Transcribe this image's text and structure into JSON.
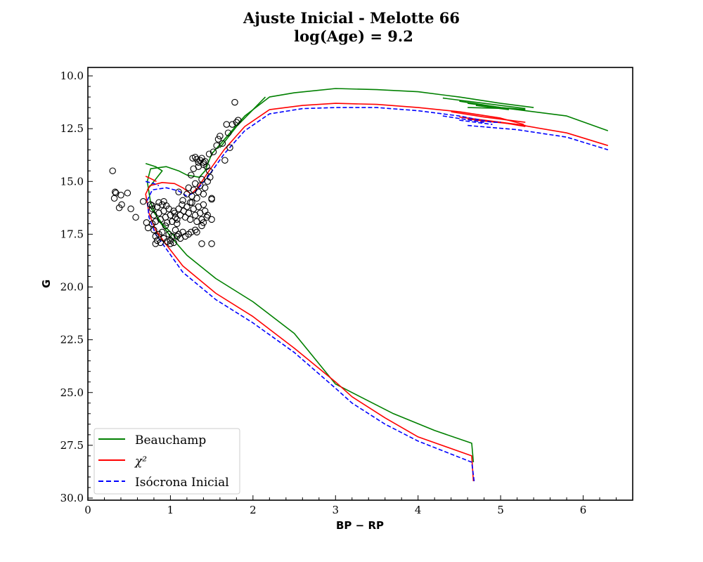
{
  "chart_data": {
    "type": "scatter",
    "title_line1": "Ajuste Inicial - Melotte 66",
    "title_line2": "log(Age) = 9.2",
    "xlabel": "BP − RP",
    "ylabel": "G",
    "xlim": [
      0,
      6.6
    ],
    "ylim": [
      30.1,
      9.6
    ],
    "y_inverted": true,
    "grid": false,
    "legend_position": "lower-left",
    "x_ticks": [
      "0",
      "1",
      "2",
      "3",
      "4",
      "5",
      "6"
    ],
    "y_ticks": [
      "10.0",
      "12.5",
      "15.0",
      "17.5",
      "20.0",
      "22.5",
      "25.0",
      "27.5",
      "30.0"
    ],
    "legend": [
      {
        "label": "Beauchamp",
        "color": "#008000",
        "style": "solid"
      },
      {
        "label": "χ²",
        "color": "#ff0000",
        "style": "solid"
      },
      {
        "label": "Isócrona Inicial",
        "color": "#0000ff",
        "style": "dashed"
      }
    ],
    "series": [
      {
        "name": "Beauchamp",
        "color": "#008000",
        "style": "solid",
        "segments": [
          [
            [
              4.67,
              28.3
            ],
            [
              4.65,
              27.4
            ],
            [
              4.2,
              26.8
            ],
            [
              3.7,
              26.0
            ],
            [
              3.2,
              25.0
            ],
            [
              3.0,
              24.6
            ],
            [
              2.5,
              22.2
            ],
            [
              2.0,
              20.7
            ],
            [
              1.55,
              19.6
            ],
            [
              1.2,
              18.5
            ],
            [
              1.0,
              17.6
            ],
            [
              0.85,
              16.8
            ],
            [
              0.76,
              16.0
            ],
            [
              0.72,
              15.0
            ],
            [
              0.76,
              14.4
            ],
            [
              0.95,
              14.3
            ],
            [
              1.1,
              14.5
            ],
            [
              1.2,
              14.7
            ],
            [
              1.35,
              14.8
            ],
            [
              1.42,
              14.5
            ],
            [
              1.5,
              13.7
            ],
            [
              1.7,
              12.8
            ],
            [
              1.9,
              11.9
            ],
            [
              2.2,
              11.0
            ],
            [
              2.5,
              10.8
            ],
            [
              3.0,
              10.6
            ],
            [
              3.5,
              10.65
            ],
            [
              4.0,
              10.75
            ],
            [
              4.5,
              11.0
            ],
            [
              5.0,
              11.3
            ],
            [
              5.4,
              11.5
            ]
          ],
          [
            [
              0.7,
              14.15
            ],
            [
              0.82,
              14.3
            ],
            [
              0.9,
              14.5
            ],
            [
              0.8,
              15.0
            ],
            [
              0.72,
              15.4
            ]
          ],
          [
            [
              1.6,
              13.4
            ],
            [
              1.8,
              12.4
            ],
            [
              1.95,
              11.8
            ],
            [
              2.15,
              11.0
            ]
          ],
          [
            [
              4.3,
              11.05
            ],
            [
              4.8,
              11.3
            ],
            [
              5.3,
              11.55
            ]
          ],
          [
            [
              4.5,
              11.2
            ],
            [
              5.0,
              11.5
            ],
            [
              5.3,
              11.6
            ]
          ],
          [
            [
              4.6,
              11.3
            ],
            [
              5.0,
              11.5
            ]
          ],
          [
            [
              4.7,
              11.4
            ],
            [
              5.1,
              11.6
            ]
          ],
          [
            [
              4.6,
              11.5
            ],
            [
              5.1,
              11.55
            ],
            [
              5.8,
              11.9
            ],
            [
              6.3,
              12.6
            ]
          ],
          [
            [
              0.75,
              16.2
            ],
            [
              0.9,
              17.0
            ],
            [
              1.1,
              17.8
            ]
          ]
        ]
      },
      {
        "name": "χ²",
        "color": "#ff0000",
        "style": "solid",
        "segments": [
          [
            [
              4.67,
              29.2
            ],
            [
              4.65,
              28.0
            ],
            [
              4.0,
              27.1
            ],
            [
              3.6,
              26.2
            ],
            [
              3.2,
              25.2
            ],
            [
              3.0,
              24.5
            ],
            [
              2.5,
              22.9
            ],
            [
              2.0,
              21.4
            ],
            [
              1.55,
              20.3
            ],
            [
              1.15,
              19.0
            ],
            [
              0.95,
              18.0
            ],
            [
              0.82,
              17.3
            ],
            [
              0.74,
              16.5
            ],
            [
              0.7,
              15.6
            ],
            [
              0.75,
              15.2
            ],
            [
              0.9,
              15.05
            ],
            [
              1.05,
              15.1
            ],
            [
              1.15,
              15.3
            ],
            [
              1.25,
              15.6
            ],
            [
              1.33,
              15.3
            ],
            [
              1.45,
              14.6
            ],
            [
              1.65,
              13.5
            ],
            [
              1.9,
              12.4
            ],
            [
              2.2,
              11.6
            ],
            [
              2.6,
              11.4
            ],
            [
              3.0,
              11.3
            ],
            [
              3.5,
              11.35
            ],
            [
              4.0,
              11.5
            ],
            [
              4.5,
              11.7
            ],
            [
              5.0,
              12.0
            ],
            [
              5.28,
              12.3
            ]
          ],
          [
            [
              0.7,
              14.75
            ],
            [
              0.78,
              14.9
            ],
            [
              0.83,
              15.0
            ]
          ],
          [
            [
              4.4,
              11.7
            ],
            [
              4.8,
              11.95
            ],
            [
              5.3,
              12.2
            ]
          ],
          [
            [
              4.5,
              11.95
            ],
            [
              4.9,
              12.15
            ],
            [
              5.3,
              12.35
            ]
          ],
          [
            [
              4.6,
              12.05
            ],
            [
              5.0,
              12.2
            ],
            [
              5.3,
              12.4
            ]
          ],
          [
            [
              4.7,
              12.1
            ],
            [
              5.2,
              12.3
            ],
            [
              5.8,
              12.7
            ],
            [
              6.3,
              13.3
            ]
          ]
        ]
      },
      {
        "name": "Isócrona Inicial",
        "color": "#0000ff",
        "style": "dashed",
        "segments": [
          [
            [
              4.68,
              29.2
            ],
            [
              4.65,
              28.3
            ],
            [
              4.0,
              27.3
            ],
            [
              3.6,
              26.5
            ],
            [
              3.2,
              25.5
            ],
            [
              3.0,
              24.8
            ],
            [
              2.5,
              23.1
            ],
            [
              2.0,
              21.7
            ],
            [
              1.55,
              20.6
            ],
            [
              1.15,
              19.3
            ],
            [
              0.95,
              18.2
            ],
            [
              0.82,
              17.5
            ],
            [
              0.74,
              16.7
            ],
            [
              0.72,
              15.9
            ],
            [
              0.78,
              15.4
            ],
            [
              0.95,
              15.3
            ],
            [
              1.1,
              15.45
            ],
            [
              1.2,
              15.7
            ],
            [
              1.3,
              15.5
            ],
            [
              1.45,
              14.8
            ],
            [
              1.65,
              13.7
            ],
            [
              1.9,
              12.6
            ],
            [
              2.2,
              11.8
            ],
            [
              2.6,
              11.55
            ],
            [
              3.0,
              11.5
            ],
            [
              3.5,
              11.5
            ],
            [
              4.0,
              11.65
            ],
            [
              4.5,
              11.9
            ],
            [
              4.9,
              12.2
            ],
            [
              5.0,
              12.2
            ]
          ],
          [
            [
              0.7,
              15.0
            ],
            [
              0.8,
              15.1
            ],
            [
              0.86,
              15.2
            ]
          ],
          [
            [
              4.3,
              11.9
            ],
            [
              4.8,
              12.2
            ]
          ],
          [
            [
              4.5,
              12.1
            ],
            [
              4.9,
              12.3
            ]
          ],
          [
            [
              4.6,
              12.35
            ],
            [
              5.2,
              12.55
            ],
            [
              5.8,
              12.9
            ],
            [
              6.3,
              13.5
            ]
          ]
        ]
      }
    ],
    "points": [
      [
        0.3,
        14.5
      ],
      [
        0.33,
        15.5
      ],
      [
        0.34,
        15.55
      ],
      [
        0.32,
        15.8
      ],
      [
        0.38,
        16.25
      ],
      [
        0.41,
        16.1
      ],
      [
        0.4,
        15.65
      ],
      [
        0.48,
        15.55
      ],
      [
        0.52,
        16.3
      ],
      [
        0.58,
        16.7
      ],
      [
        0.67,
        15.95
      ],
      [
        0.71,
        16.95
      ],
      [
        0.73,
        17.2
      ],
      [
        0.76,
        16.1
      ],
      [
        0.78,
        17.0
      ],
      [
        0.8,
        17.3
      ],
      [
        0.82,
        17.6
      ],
      [
        0.84,
        17.8
      ],
      [
        0.86,
        17.5
      ],
      [
        0.88,
        17.9
      ],
      [
        0.9,
        17.4
      ],
      [
        0.92,
        17.7
      ],
      [
        0.94,
        17.1
      ],
      [
        0.96,
        17.85
      ],
      [
        0.98,
        17.5
      ],
      [
        1.0,
        17.8
      ],
      [
        1.02,
        17.6
      ],
      [
        1.04,
        17.9
      ],
      [
        1.06,
        17.3
      ],
      [
        1.08,
        17.6
      ],
      [
        1.1,
        17.5
      ],
      [
        1.12,
        17.7
      ],
      [
        1.15,
        17.4
      ],
      [
        1.18,
        17.6
      ],
      [
        0.78,
        16.3
      ],
      [
        0.8,
        16.6
      ],
      [
        0.82,
        16.9
      ],
      [
        0.84,
        16.2
      ],
      [
        0.86,
        16.5
      ],
      [
        0.88,
        16.8
      ],
      [
        0.9,
        16.1
      ],
      [
        0.92,
        16.4
      ],
      [
        0.94,
        16.7
      ],
      [
        0.96,
        16.95
      ],
      [
        0.98,
        16.3
      ],
      [
        1.0,
        16.6
      ],
      [
        1.02,
        16.9
      ],
      [
        1.04,
        16.4
      ],
      [
        1.06,
        16.7
      ],
      [
        1.08,
        17.0
      ],
      [
        1.1,
        16.3
      ],
      [
        1.12,
        16.6
      ],
      [
        1.14,
        16.1
      ],
      [
        1.16,
        16.4
      ],
      [
        1.18,
        16.7
      ],
      [
        1.2,
        16.2
      ],
      [
        1.22,
        16.5
      ],
      [
        1.24,
        16.8
      ],
      [
        1.26,
        16.0
      ],
      [
        1.28,
        16.3
      ],
      [
        1.3,
        16.6
      ],
      [
        1.32,
        16.9
      ],
      [
        1.34,
        16.2
      ],
      [
        1.36,
        16.5
      ],
      [
        1.38,
        16.8
      ],
      [
        1.4,
        16.1
      ],
      [
        1.42,
        16.4
      ],
      [
        1.44,
        16.7
      ],
      [
        1.3,
        17.3
      ],
      [
        1.32,
        17.4
      ],
      [
        1.38,
        17.1
      ],
      [
        1.4,
        16.95
      ],
      [
        1.45,
        16.6
      ],
      [
        1.5,
        16.8
      ],
      [
        1.22,
        17.5
      ],
      [
        1.25,
        17.4
      ],
      [
        1.1,
        15.5
      ],
      [
        1.15,
        15.9
      ],
      [
        1.2,
        15.6
      ],
      [
        1.22,
        15.3
      ],
      [
        1.24,
        16.0
      ],
      [
        1.26,
        15.7
      ],
      [
        1.28,
        15.4
      ],
      [
        1.3,
        15.1
      ],
      [
        1.32,
        15.8
      ],
      [
        1.34,
        15.5
      ],
      [
        1.36,
        15.2
      ],
      [
        1.38,
        14.9
      ],
      [
        1.4,
        15.6
      ],
      [
        1.42,
        15.3
      ],
      [
        1.45,
        15.0
      ],
      [
        1.48,
        14.8
      ],
      [
        1.5,
        15.8
      ],
      [
        1.5,
        15.85
      ],
      [
        1.47,
        14.5
      ],
      [
        1.44,
        14.3
      ],
      [
        1.4,
        14.1
      ],
      [
        1.27,
        13.9
      ],
      [
        1.3,
        13.85
      ],
      [
        1.32,
        13.95
      ],
      [
        1.34,
        14.1
      ],
      [
        1.36,
        14.0
      ],
      [
        1.38,
        13.9
      ],
      [
        1.4,
        14.2
      ],
      [
        1.42,
        14.05
      ],
      [
        1.25,
        14.7
      ],
      [
        1.34,
        14.3
      ],
      [
        1.28,
        14.4
      ],
      [
        1.47,
        13.7
      ],
      [
        1.52,
        13.6
      ],
      [
        1.56,
        13.3
      ],
      [
        1.58,
        13.0
      ],
      [
        1.6,
        12.85
      ],
      [
        1.63,
        13.2
      ],
      [
        1.66,
        14.0
      ],
      [
        1.7,
        12.7
      ],
      [
        1.72,
        13.4
      ],
      [
        1.75,
        12.3
      ],
      [
        1.78,
        11.25
      ],
      [
        1.8,
        12.2
      ],
      [
        1.82,
        12.1
      ],
      [
        1.68,
        12.3
      ],
      [
        1.38,
        17.95
      ],
      [
        1.5,
        17.95
      ],
      [
        0.86,
        16.0
      ],
      [
        0.92,
        15.95
      ],
      [
        0.78,
        16.15
      ],
      [
        0.82,
        17.95
      ],
      [
        1.0,
        17.95
      ],
      [
        1.05,
        16.5
      ],
      [
        1.08,
        16.8
      ],
      [
        0.95,
        16.15
      ]
    ]
  }
}
